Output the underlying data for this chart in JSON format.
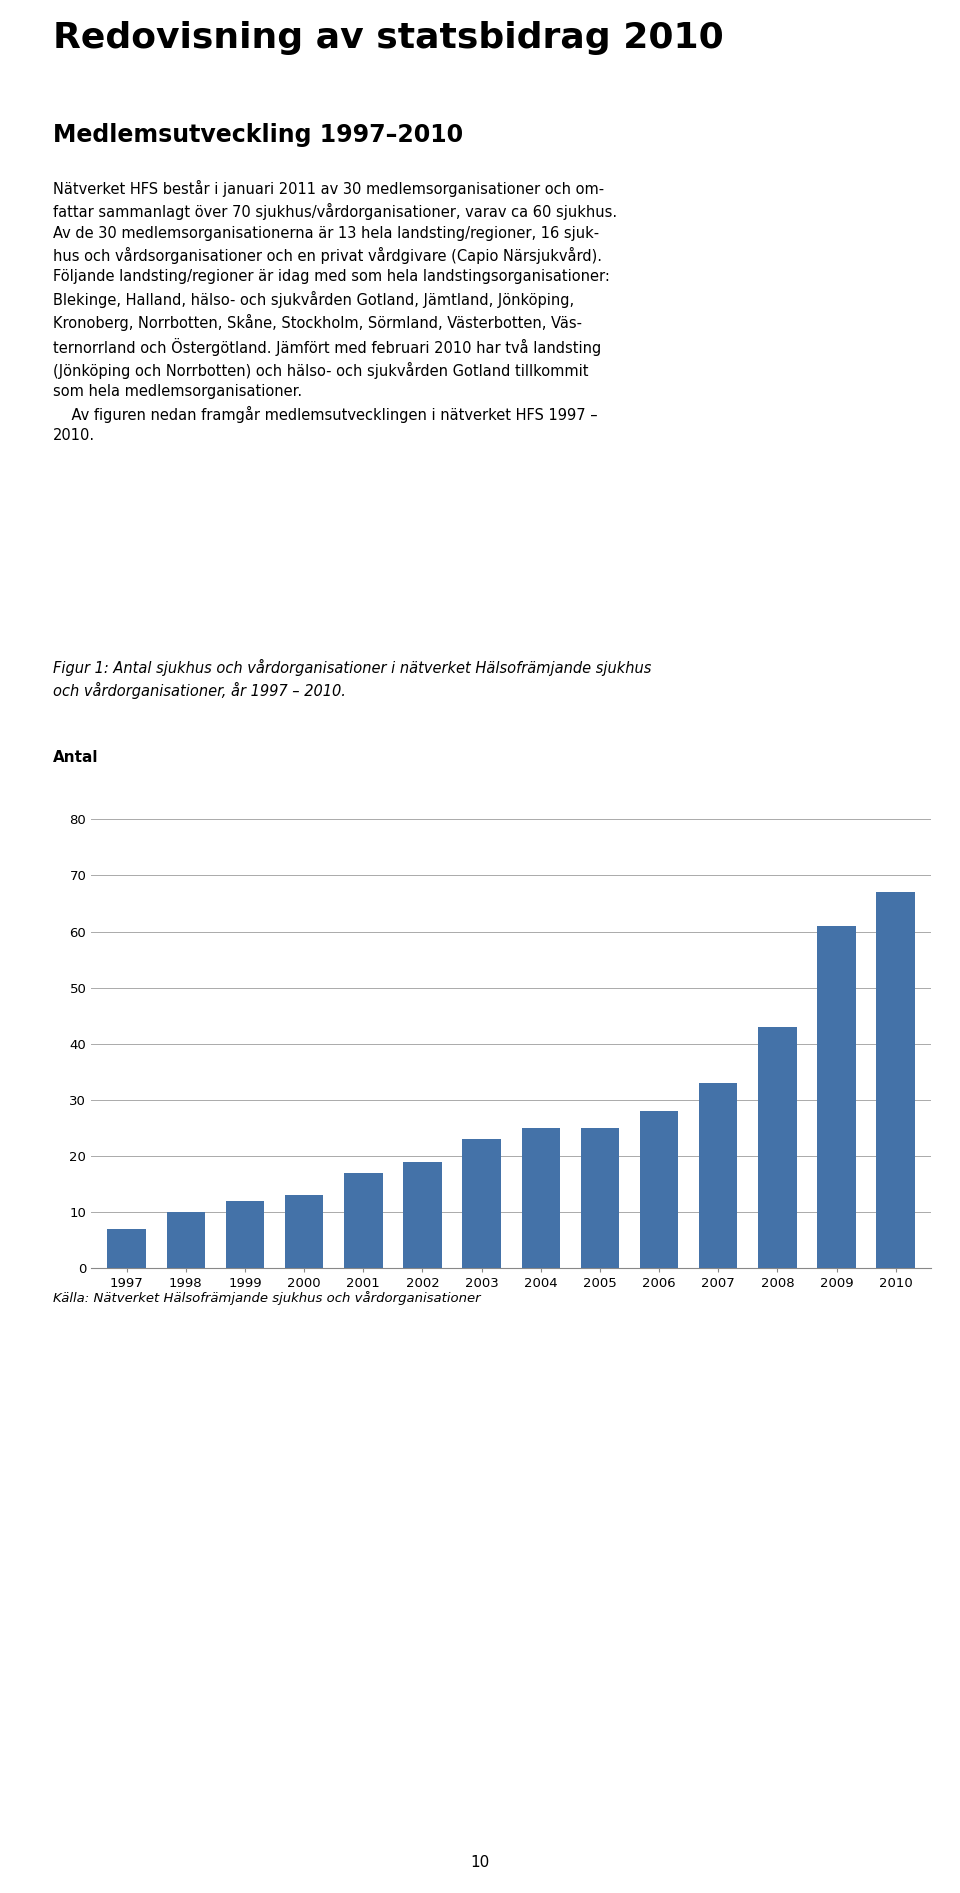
{
  "page_title": "Redovisning av statsbidrag 2010",
  "section_title": "Medlemsutveckling 1997–2010",
  "fig_caption_line1": "Figur 1: Antal sjukhus och vårdorganisationer i nätverket Hälsofrämjande sjukhus",
  "fig_caption_line2": "och vårdorganisationer, år 1997 – 2010.",
  "ylabel": "Antal",
  "source_text": "Källa: Nätverket Hälsofrämjande sjukhus och vårdorganisationer",
  "years": [
    1997,
    1998,
    1999,
    2000,
    2001,
    2002,
    2003,
    2004,
    2005,
    2006,
    2007,
    2008,
    2009,
    2010
  ],
  "values": [
    7,
    10,
    12,
    13,
    17,
    19,
    23,
    25,
    25,
    28,
    33,
    43,
    61,
    67
  ],
  "bar_color": "#4472a8",
  "ylim": [
    0,
    85
  ],
  "yticks": [
    0,
    10,
    20,
    30,
    40,
    50,
    60,
    70,
    80
  ],
  "grid_color": "#aaaaaa",
  "bg_color": "#ffffff",
  "page_number": "10",
  "title_line_color": "#8b0000",
  "body_lines": [
    "Nätverket HFS består i januari 2011 av 30 medlemsorganisationer och om-",
    "fattar sammanlagt över 70 sjukhus/vårdorganisationer, varav ca 60 sjukhus.",
    "Av de 30 medlemsorganisationerna är 13 hela landsting/regioner, 16 sjuk-",
    "hus och vårdsorganisationer och en privat vårdgivare (Capio Närsjukvård).",
    "Följande landsting/regioner är idag med som hela landstingsorganisationer:",
    "Blekinge, Halland, hälso- och sjukvården Gotland, Jämtland, Jönköping,",
    "Kronoberg, Norrbotten, Skåne, Stockholm, Sörmland, Västerbotten, Väs-",
    "ternorrland och Östergötland. Jämfört med februari 2010 har två landsting",
    "(Jönköping och Norrbotten) och hälso- och sjukvården Gotland tillkommit",
    "som hela medlemsorganisationer.",
    "    Av figuren nedan framgår medlemsutvecklingen i nätverket HFS 1997 –",
    "2010."
  ]
}
